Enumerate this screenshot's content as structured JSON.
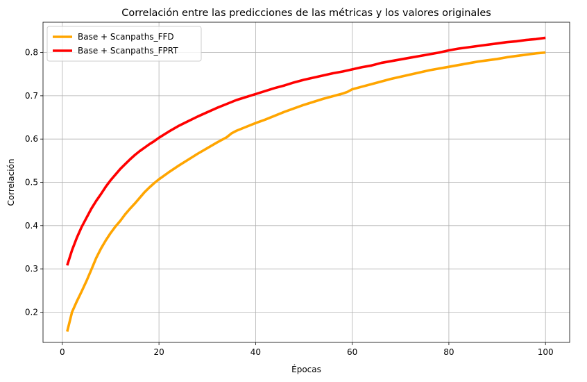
{
  "chart_data": {
    "type": "line",
    "title": "Correlación entre las predicciones de las métricas y los valores originales",
    "xlabel": "Épocas",
    "ylabel": "Correlación",
    "xlim": [
      -4,
      105
    ],
    "ylim": [
      0.13,
      0.87
    ],
    "xticks": [
      0,
      20,
      40,
      60,
      80,
      100
    ],
    "yticks": [
      0.2,
      0.3,
      0.4,
      0.5,
      0.6,
      0.7,
      0.8
    ],
    "grid": true,
    "legend_position": "top-left",
    "series": [
      {
        "name": "Base + Scanpaths_FFD",
        "color": "#ffa500",
        "x": [
          1,
          2,
          3,
          4,
          5,
          6,
          7,
          8,
          9,
          10,
          11,
          12,
          13,
          14,
          15,
          16,
          17,
          18,
          19,
          20,
          22,
          24,
          26,
          28,
          30,
          32,
          34,
          35,
          36,
          38,
          40,
          42,
          44,
          46,
          48,
          50,
          52,
          54,
          56,
          58,
          59,
          60,
          62,
          64,
          66,
          68,
          70,
          72,
          74,
          76,
          78,
          80,
          82,
          84,
          86,
          88,
          90,
          92,
          94,
          96,
          98,
          100
        ],
        "y": [
          0.155,
          0.2,
          0.225,
          0.248,
          0.272,
          0.298,
          0.325,
          0.347,
          0.366,
          0.383,
          0.398,
          0.411,
          0.426,
          0.439,
          0.451,
          0.464,
          0.477,
          0.488,
          0.498,
          0.507,
          0.523,
          0.538,
          0.552,
          0.566,
          0.579,
          0.592,
          0.604,
          0.613,
          0.619,
          0.628,
          0.637,
          0.645,
          0.654,
          0.663,
          0.671,
          0.679,
          0.686,
          0.693,
          0.699,
          0.705,
          0.709,
          0.715,
          0.721,
          0.727,
          0.733,
          0.739,
          0.744,
          0.749,
          0.754,
          0.759,
          0.763,
          0.767,
          0.771,
          0.775,
          0.779,
          0.782,
          0.785,
          0.789,
          0.792,
          0.795,
          0.798,
          0.8
        ]
      },
      {
        "name": "Base + Scanpaths_FPRT",
        "color": "#ff0000",
        "x": [
          1,
          2,
          3,
          4,
          5,
          6,
          7,
          8,
          9,
          10,
          11,
          12,
          13,
          14,
          15,
          16,
          17,
          18,
          19,
          20,
          22,
          24,
          26,
          28,
          30,
          32,
          34,
          36,
          38,
          40,
          42,
          44,
          46,
          48,
          50,
          52,
          54,
          56,
          58,
          60,
          62,
          64,
          65,
          66,
          68,
          70,
          72,
          74,
          76,
          78,
          80,
          82,
          84,
          86,
          88,
          90,
          92,
          94,
          96,
          98,
          100
        ],
        "y": [
          0.308,
          0.343,
          0.372,
          0.397,
          0.418,
          0.439,
          0.457,
          0.473,
          0.49,
          0.505,
          0.518,
          0.531,
          0.542,
          0.553,
          0.563,
          0.572,
          0.58,
          0.588,
          0.595,
          0.603,
          0.617,
          0.63,
          0.641,
          0.652,
          0.662,
          0.672,
          0.681,
          0.69,
          0.697,
          0.704,
          0.711,
          0.718,
          0.724,
          0.731,
          0.737,
          0.742,
          0.747,
          0.752,
          0.756,
          0.761,
          0.766,
          0.77,
          0.773,
          0.776,
          0.78,
          0.784,
          0.788,
          0.792,
          0.796,
          0.8,
          0.805,
          0.809,
          0.812,
          0.815,
          0.818,
          0.821,
          0.824,
          0.826,
          0.829,
          0.831,
          0.834
        ]
      }
    ]
  }
}
